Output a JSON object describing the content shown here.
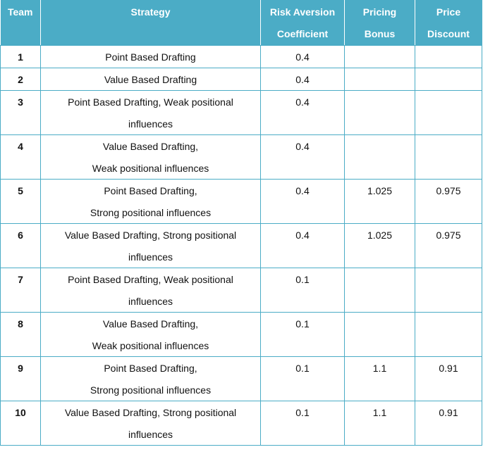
{
  "headers": {
    "team": "Team",
    "strategy": "Strategy",
    "risk_line1": "Risk Aversion",
    "risk_line2": "Coefficient",
    "bonus_line1": "Pricing",
    "bonus_line2": "Bonus",
    "discount_line1": "Price",
    "discount_line2": "Discount"
  },
  "rows": [
    {
      "team": "1",
      "strategy_line1": "Point Based Drafting",
      "strategy_line2": "",
      "risk": "0.4",
      "bonus": "",
      "discount": ""
    },
    {
      "team": "2",
      "strategy_line1": "Value Based Drafting",
      "strategy_line2": "",
      "risk": "0.4",
      "bonus": "",
      "discount": ""
    },
    {
      "team": "3",
      "strategy_line1": "Point Based Drafting, Weak positional",
      "strategy_line2": "influences",
      "risk": "0.4",
      "bonus": "",
      "discount": ""
    },
    {
      "team": "4",
      "strategy_line1": "Value Based Drafting,",
      "strategy_line2": "Weak positional influences",
      "risk": "0.4",
      "bonus": "",
      "discount": ""
    },
    {
      "team": "5",
      "strategy_line1": "Point Based Drafting,",
      "strategy_line2": "Strong positional influences",
      "risk": "0.4",
      "bonus": "1.025",
      "discount": "0.975"
    },
    {
      "team": "6",
      "strategy_line1": "Value Based Drafting, Strong positional",
      "strategy_line2": "influences",
      "risk": "0.4",
      "bonus": "1.025",
      "discount": "0.975"
    },
    {
      "team": "7",
      "strategy_line1": "Point Based Drafting, Weak positional",
      "strategy_line2": "influences",
      "risk": "0.1",
      "bonus": "",
      "discount": ""
    },
    {
      "team": "8",
      "strategy_line1": "Value Based Drafting,",
      "strategy_line2": "Weak positional influences",
      "risk": "0.1",
      "bonus": "",
      "discount": ""
    },
    {
      "team": "9",
      "strategy_line1": "Point Based Drafting,",
      "strategy_line2": "Strong positional influences",
      "risk": "0.1",
      "bonus": "1.1",
      "discount": "0.91"
    },
    {
      "team": "10",
      "strategy_line1": "Value Based Drafting, Strong positional",
      "strategy_line2": "influences",
      "risk": "0.1",
      "bonus": "1.1",
      "discount": "0.91"
    }
  ]
}
